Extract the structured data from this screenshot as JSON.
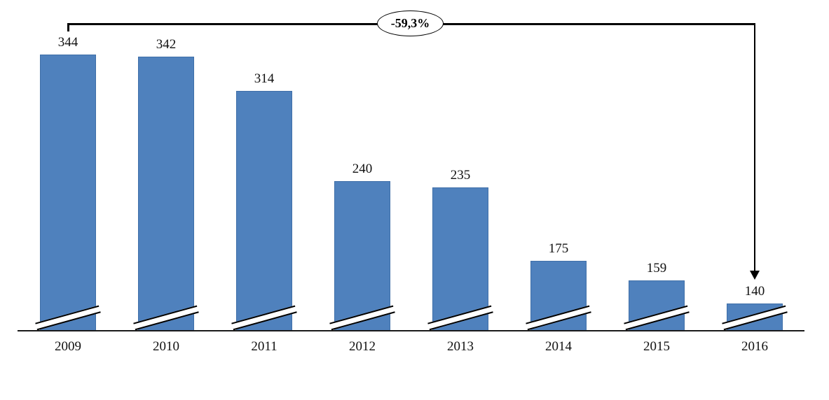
{
  "chart_data": {
    "type": "bar",
    "title": "",
    "xlabel": "",
    "ylabel": "",
    "categories": [
      "2009",
      "2010",
      "2011",
      "2012",
      "2013",
      "2014",
      "2015",
      "2016"
    ],
    "values": [
      344,
      342,
      314,
      240,
      235,
      175,
      159,
      140
    ],
    "data_labels": "above bars",
    "grid": "off",
    "legend": "none",
    "axis_break_marks": "double slash at base of every bar (y-axis does not start at zero)",
    "colors": {
      "bar_fill": "#4f81bd",
      "bar_border": "#3f6fa8",
      "annotation_line": "#000000",
      "axis_line": "#1a1a1a",
      "background": "#ffffff"
    },
    "annotation": {
      "label": "-59,3%",
      "shape": "ellipse on bracket line",
      "from_category": "2009",
      "to_category": "2016",
      "arrow": "down arrow pointing at 2016 bar"
    }
  }
}
